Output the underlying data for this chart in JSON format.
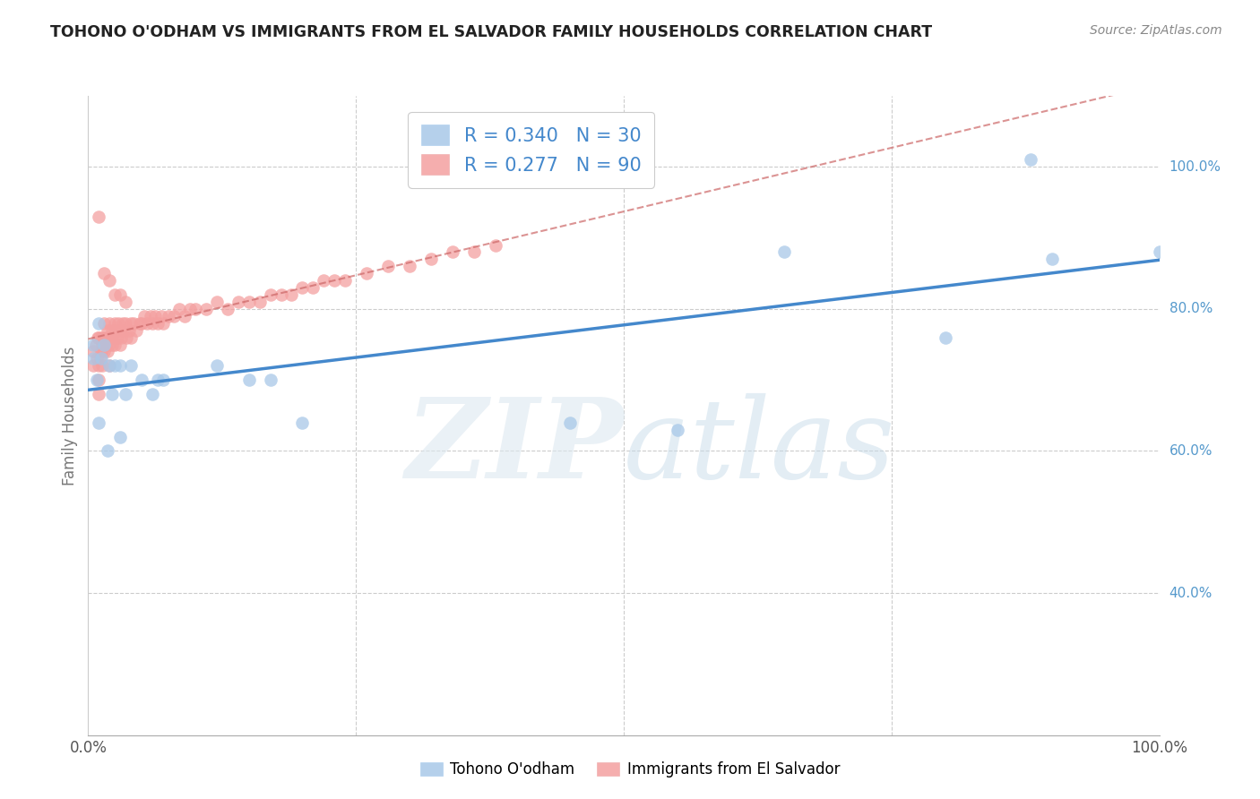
{
  "title": "TOHONO O'ODHAM VS IMMIGRANTS FROM EL SALVADOR FAMILY HOUSEHOLDS CORRELATION CHART",
  "source": "Source: ZipAtlas.com",
  "ylabel": "Family Households",
  "legend_blue_label": "Tohono O'odham",
  "legend_pink_label": "Immigrants from El Salvador",
  "legend_blue_R": "0.340",
  "legend_blue_N": "30",
  "legend_pink_R": "0.277",
  "legend_pink_N": "90",
  "blue_color": "#a8c8e8",
  "pink_color": "#f4a0a0",
  "blue_line_color": "#4488cc",
  "pink_line_color": "#cc6666",
  "background_color": "#ffffff",
  "grid_color": "#cccccc",
  "right_axis_color": "#5599cc",
  "blue_x": [
    0.005,
    0.005,
    0.008,
    0.01,
    0.01,
    0.012,
    0.015,
    0.018,
    0.02,
    0.022,
    0.025,
    0.03,
    0.03,
    0.035,
    0.04,
    0.05,
    0.06,
    0.065,
    0.07,
    0.12,
    0.15,
    0.17,
    0.2,
    0.45,
    0.55,
    0.65,
    0.8,
    0.88,
    0.9,
    1.0
  ],
  "blue_y": [
    0.73,
    0.75,
    0.7,
    0.78,
    0.64,
    0.73,
    0.75,
    0.6,
    0.72,
    0.68,
    0.72,
    0.72,
    0.62,
    0.68,
    0.72,
    0.7,
    0.68,
    0.7,
    0.7,
    0.72,
    0.7,
    0.7,
    0.64,
    0.64,
    0.63,
    0.88,
    0.76,
    1.01,
    0.87,
    0.88
  ],
  "pink_x": [
    0.005,
    0.005,
    0.007,
    0.008,
    0.009,
    0.01,
    0.01,
    0.01,
    0.01,
    0.011,
    0.012,
    0.012,
    0.013,
    0.013,
    0.014,
    0.015,
    0.015,
    0.015,
    0.016,
    0.017,
    0.018,
    0.018,
    0.019,
    0.02,
    0.02,
    0.02,
    0.021,
    0.022,
    0.022,
    0.023,
    0.025,
    0.025,
    0.026,
    0.027,
    0.028,
    0.03,
    0.03,
    0.031,
    0.032,
    0.033,
    0.035,
    0.036,
    0.038,
    0.04,
    0.04,
    0.042,
    0.045,
    0.048,
    0.05,
    0.052,
    0.055,
    0.058,
    0.06,
    0.062,
    0.065,
    0.068,
    0.07,
    0.075,
    0.08,
    0.085,
    0.09,
    0.095,
    0.1,
    0.11,
    0.12,
    0.13,
    0.14,
    0.15,
    0.16,
    0.17,
    0.18,
    0.19,
    0.2,
    0.21,
    0.22,
    0.23,
    0.24,
    0.26,
    0.28,
    0.3,
    0.32,
    0.34,
    0.36,
    0.38,
    0.01,
    0.015,
    0.02,
    0.025,
    0.03,
    0.035
  ],
  "pink_y": [
    0.74,
    0.72,
    0.75,
    0.73,
    0.76,
    0.7,
    0.72,
    0.68,
    0.76,
    0.73,
    0.76,
    0.74,
    0.75,
    0.72,
    0.75,
    0.76,
    0.74,
    0.78,
    0.75,
    0.76,
    0.74,
    0.77,
    0.75,
    0.76,
    0.78,
    0.72,
    0.76,
    0.75,
    0.77,
    0.76,
    0.78,
    0.75,
    0.77,
    0.76,
    0.78,
    0.77,
    0.75,
    0.76,
    0.78,
    0.77,
    0.78,
    0.76,
    0.77,
    0.78,
    0.76,
    0.78,
    0.77,
    0.78,
    0.78,
    0.79,
    0.78,
    0.79,
    0.78,
    0.79,
    0.78,
    0.79,
    0.78,
    0.79,
    0.79,
    0.8,
    0.79,
    0.8,
    0.8,
    0.8,
    0.81,
    0.8,
    0.81,
    0.81,
    0.81,
    0.82,
    0.82,
    0.82,
    0.83,
    0.83,
    0.84,
    0.84,
    0.84,
    0.85,
    0.86,
    0.86,
    0.87,
    0.88,
    0.88,
    0.89,
    0.93,
    0.85,
    0.84,
    0.82,
    0.82,
    0.81
  ]
}
